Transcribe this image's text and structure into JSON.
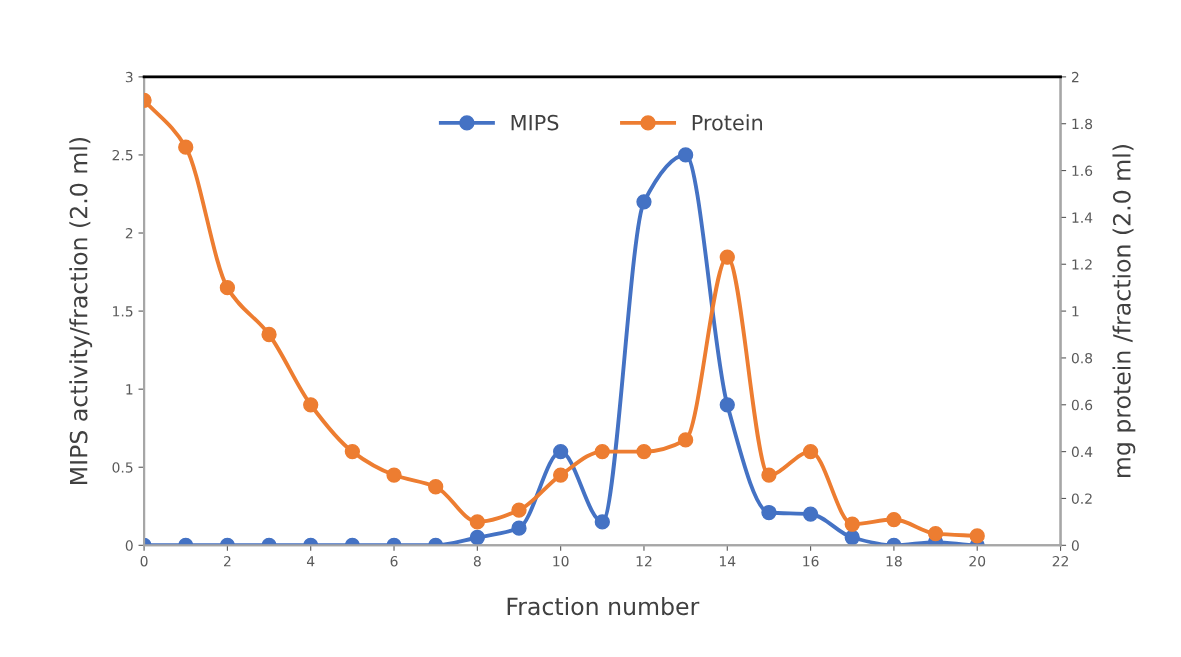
{
  "chart_data": {
    "type": "line",
    "xlabel": "Fraction number",
    "ylabel": "MIPS activity/fraction (2.0 ml)",
    "y2label": "mg protein /fraction (2.0 ml)",
    "x": [
      0,
      1,
      2,
      3,
      4,
      5,
      6,
      7,
      8,
      9,
      10,
      11,
      12,
      13,
      14,
      15,
      16,
      17,
      18,
      19,
      20
    ],
    "series": [
      {
        "name": "MIPS",
        "color": "#4472c4",
        "values": [
          0,
          0,
          0,
          0,
          0,
          0,
          0,
          0,
          0.05,
          0.11,
          0.6,
          0.15,
          2.2,
          2.5,
          0.9,
          0.21,
          0.2,
          0.05,
          0,
          0.02,
          0
        ]
      },
      {
        "name": "Protein",
        "color": "#ed7d31",
        "axis": "y2",
        "values": [
          1.9,
          1.7,
          1.1,
          0.9,
          0.6,
          0.4,
          0.3,
          0.25,
          0.1,
          0.15,
          0.3,
          0.4,
          0.4,
          0.45,
          1.23,
          0.3,
          0.4,
          0.09,
          0.11,
          0.05,
          0.04
        ]
      }
    ],
    "xlim": [
      0,
      22
    ],
    "xticks": [
      0,
      2,
      4,
      6,
      8,
      10,
      12,
      14,
      16,
      18,
      20,
      22
    ],
    "ylim": [
      0,
      3
    ],
    "yticks": [
      0,
      0.5,
      1,
      1.5,
      2,
      2.5,
      3
    ],
    "y2lim": [
      0,
      2
    ],
    "y2ticks": [
      0,
      0.2,
      0.4,
      0.6,
      0.8,
      1,
      1.2,
      1.4,
      1.6,
      1.8,
      2
    ],
    "grid": false,
    "legend": "top",
    "marker": "circle",
    "line_style": "solid"
  }
}
